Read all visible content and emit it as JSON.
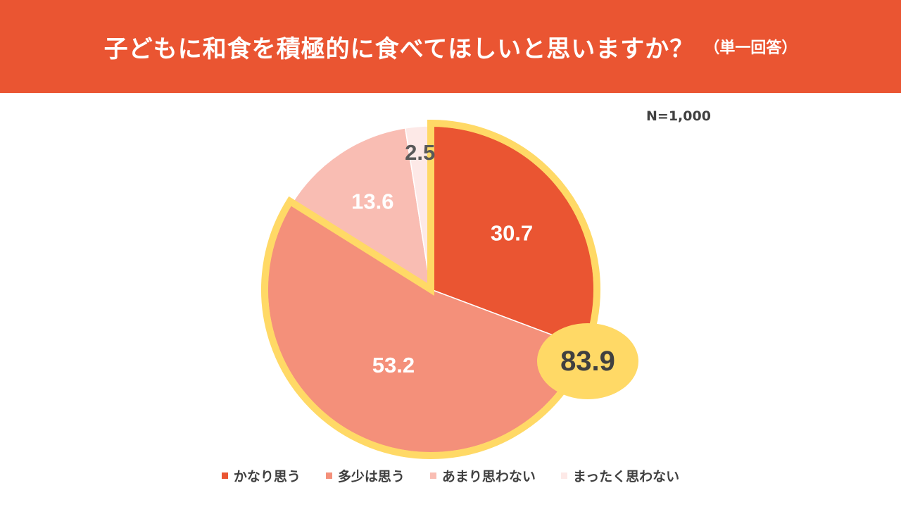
{
  "header": {
    "title": "子どもに和食を積極的に食べてほしいと思いますか？",
    "subtitle": "（単一回答）"
  },
  "sample_size": "N=1,000",
  "colors": {
    "header_bg": "#EA5532",
    "highlight": "#FFD966",
    "slice_1": "#EA5532",
    "slice_2": "#F4907A",
    "slice_3": "#F9BDB3",
    "slice_4": "#FDE9E7"
  },
  "chart_data": {
    "type": "pie",
    "title": "子どもに和食を積極的に食べてほしいと思いますか？",
    "subtitle": "（単一回答）",
    "unit": "%",
    "start": "12 o'clock",
    "direction": "clockwise",
    "categories": [
      "かなり思う",
      "多少は思う",
      "あまり思わない",
      "まったく思わない"
    ],
    "values": [
      30.7,
      53.2,
      13.6,
      2.5
    ],
    "value_labels": [
      "30.7",
      "53.2",
      "13.6",
      "2.5"
    ],
    "highlight": {
      "slices": [
        "かなり思う",
        "多少は思う"
      ],
      "total": 83.9,
      "total_label": "83.9"
    },
    "legend": {
      "placement": "bottom",
      "entries": [
        "かなり思う",
        "多少は思う",
        "あまり思わない",
        "まったく思わない"
      ]
    }
  }
}
